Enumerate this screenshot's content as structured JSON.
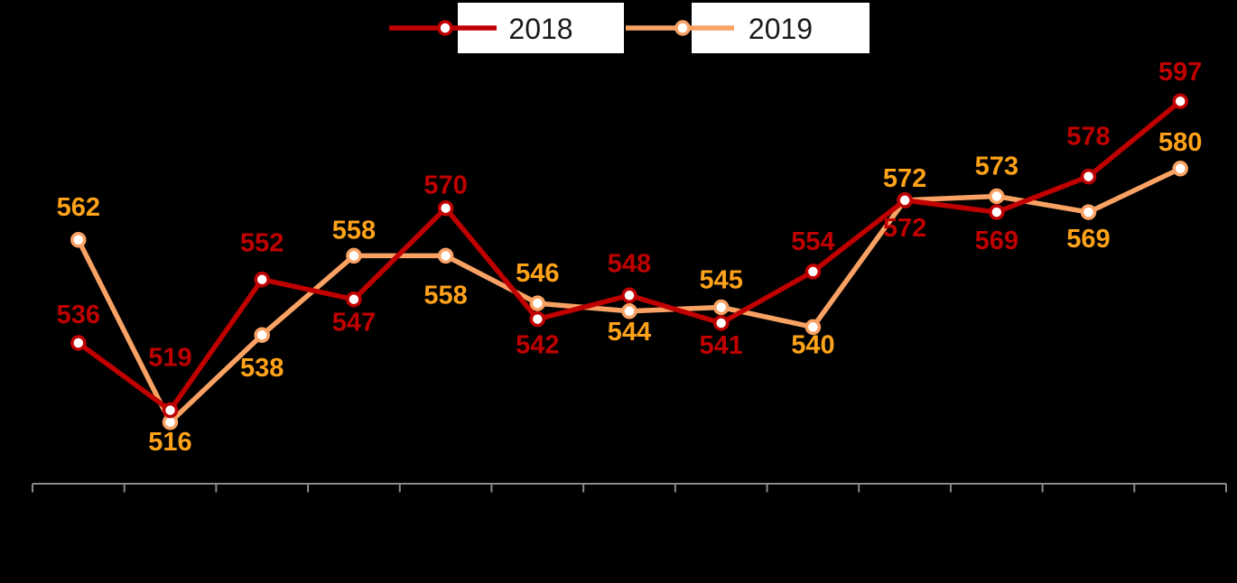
{
  "style": {
    "background": "#000000",
    "axis_color": "#8A8A8A",
    "marker_fill": "#FFFFFF",
    "legend_box_fill": "#FFFFFF",
    "legend_text_color": "#1A1A1A"
  },
  "legend": {
    "position": "top",
    "entries": [
      {
        "label": "2018",
        "color": "#C00000"
      },
      {
        "label": "2019",
        "color": "#FAA264"
      }
    ]
  },
  "chart_data": {
    "type": "line",
    "title": "",
    "legend_position": "top",
    "n_points": 13,
    "x_axis": {
      "labels_visible": false,
      "tick_count": 14,
      "grid": false
    },
    "y_axis": {
      "visible": false,
      "implied_range": [
        500,
        610
      ],
      "grid": false
    },
    "series": [
      {
        "name": "2018",
        "color": "#C00000",
        "label_color": "#C00000",
        "values": [
          536,
          519,
          552,
          547,
          570,
          542,
          548,
          541,
          554,
          572,
          569,
          578,
          597
        ],
        "label_side": [
          "above",
          "above",
          "above",
          "below",
          "above",
          "below",
          "above",
          "below",
          "above",
          "below",
          "below",
          "above",
          "above"
        ],
        "label_dy": [
          -31,
          -58,
          -40,
          26,
          -25,
          29,
          -35,
          25,
          -33,
          31,
          32,
          -44,
          -32
        ]
      },
      {
        "name": "2019",
        "color": "#FAA264",
        "label_color": "#FFA319",
        "values": [
          562,
          516,
          538,
          558,
          558,
          546,
          544,
          545,
          540,
          572,
          573,
          569,
          580
        ],
        "label_side": [
          "above",
          "below",
          "below",
          "above",
          "below",
          "above",
          "below",
          "above",
          "below",
          "above",
          "above",
          "below",
          "above"
        ],
        "label_dy": [
          -36,
          22,
          37,
          -28,
          44,
          -33,
          23,
          -30,
          20,
          -24,
          -33,
          30,
          -29
        ]
      }
    ]
  }
}
